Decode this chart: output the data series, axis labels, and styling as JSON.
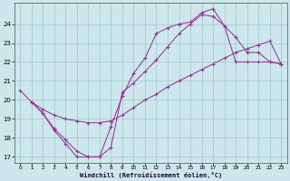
{
  "xlabel": "Windchill (Refroidissement éolien,°C)",
  "bg_color": "#cce8ec",
  "grid_color": "#aacccc",
  "line_color": "#993399",
  "spine_color": "#666666",
  "xlim": [
    -0.5,
    23.5
  ],
  "ylim": [
    16.7,
    25.1
  ],
  "yticks": [
    17,
    18,
    19,
    20,
    21,
    22,
    23,
    24
  ],
  "xticks": [
    0,
    1,
    2,
    3,
    4,
    5,
    6,
    7,
    8,
    9,
    10,
    11,
    12,
    13,
    14,
    15,
    16,
    17,
    18,
    19,
    20,
    21,
    22,
    23
  ],
  "curve1_x": [
    0,
    1,
    2,
    3,
    4,
    5,
    6,
    7,
    8,
    9,
    10,
    11,
    12,
    13,
    14,
    15,
    16,
    17,
    18,
    19,
    20,
    21,
    22,
    23
  ],
  "curve1_y": [
    20.5,
    19.9,
    19.3,
    18.4,
    17.7,
    17.0,
    17.0,
    17.0,
    18.6,
    20.2,
    21.4,
    22.2,
    23.5,
    23.8,
    24.0,
    24.1,
    24.6,
    24.8,
    23.9,
    23.3,
    22.5,
    22.5,
    22.0,
    21.9
  ],
  "curve2_x": [
    1,
    2,
    3,
    4,
    5,
    6,
    7,
    8,
    9,
    10,
    11,
    12,
    13,
    14,
    15,
    16,
    17,
    18,
    19,
    20,
    21,
    22,
    23
  ],
  "curve2_y": [
    19.9,
    19.3,
    18.5,
    17.9,
    17.3,
    17.0,
    17.0,
    17.5,
    20.4,
    20.9,
    21.5,
    22.1,
    22.8,
    23.5,
    24.0,
    24.5,
    24.4,
    23.9,
    22.0,
    22.0,
    22.0,
    22.0,
    21.9
  ],
  "curve3_x": [
    1,
    2,
    3,
    4,
    5,
    6,
    7,
    8,
    9,
    10,
    11,
    12,
    13,
    14,
    15,
    16,
    17,
    18,
    19,
    20,
    21,
    22,
    23
  ],
  "curve3_y": [
    19.9,
    19.5,
    19.2,
    19.0,
    18.9,
    18.8,
    18.8,
    18.9,
    19.2,
    19.6,
    20.0,
    20.3,
    20.7,
    21.0,
    21.3,
    21.6,
    21.9,
    22.2,
    22.5,
    22.7,
    22.9,
    23.1,
    21.9
  ]
}
